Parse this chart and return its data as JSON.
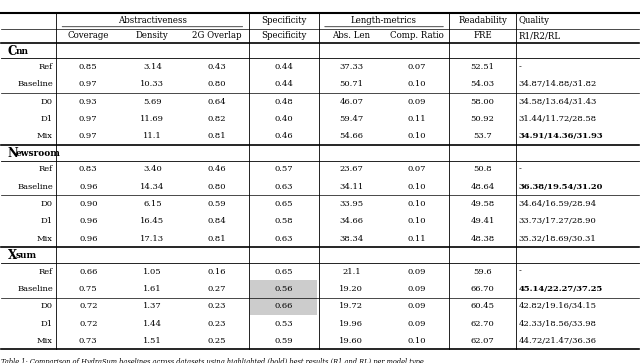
{
  "sections": [
    {
      "name": "CNN",
      "ref_rows": [
        {
          "label": "Ref",
          "values": [
            "0.85",
            "3.14",
            "0.43",
            "0.44",
            "37.33",
            "0.07",
            "52.51",
            "-"
          ],
          "bold_q": false
        },
        {
          "label": "Baseline",
          "values": [
            "0.97",
            "10.33",
            "0.80",
            "0.44",
            "50.71",
            "0.10",
            "54.03",
            "34.87/14.88/31.82"
          ],
          "bold_q": false
        }
      ],
      "dec_rows": [
        {
          "label": "D0",
          "values": [
            "0.93",
            "5.69",
            "0.64",
            "0.48",
            "46.07",
            "0.09",
            "58.00",
            "34.58/13.64/31.43"
          ],
          "bold_q": false,
          "hl": false
        },
        {
          "label": "D1",
          "values": [
            "0.97",
            "11.69",
            "0.82",
            "0.40",
            "59.47",
            "0.11",
            "50.92",
            "31.44/11.72/28.58"
          ],
          "bold_q": false,
          "hl": false
        },
        {
          "label": "Mix",
          "values": [
            "0.97",
            "11.1",
            "0.81",
            "0.46",
            "54.66",
            "0.10",
            "53.7",
            "34.91/14.36/31.93"
          ],
          "bold_q": true,
          "hl": false
        }
      ]
    },
    {
      "name": "Newsroom",
      "ref_rows": [
        {
          "label": "Ref",
          "values": [
            "0.83",
            "3.40",
            "0.46",
            "0.57",
            "23.67",
            "0.07",
            "50.8",
            "-"
          ],
          "bold_q": false
        },
        {
          "label": "Baseline",
          "values": [
            "0.96",
            "14.34",
            "0.80",
            "0.63",
            "34.11",
            "0.10",
            "48.64",
            "36.38/19.54/31.20"
          ],
          "bold_q": true
        }
      ],
      "dec_rows": [
        {
          "label": "D0",
          "values": [
            "0.90",
            "6.15",
            "0.59",
            "0.65",
            "33.95",
            "0.10",
            "49.58",
            "34.64/16.59/28.94"
          ],
          "bold_q": false,
          "hl": false
        },
        {
          "label": "D1",
          "values": [
            "0.96",
            "16.45",
            "0.84",
            "0.58",
            "34.66",
            "0.10",
            "49.41",
            "33.73/17.27/28.90"
          ],
          "bold_q": false,
          "hl": false
        },
        {
          "label": "Mix",
          "values": [
            "0.96",
            "17.13",
            "0.81",
            "0.63",
            "38.34",
            "0.11",
            "48.38",
            "35.32/18.69/30.31"
          ],
          "bold_q": false,
          "hl": false
        }
      ]
    },
    {
      "name": "Xsum",
      "ref_rows": [
        {
          "label": "Ref",
          "values": [
            "0.66",
            "1.05",
            "0.16",
            "0.65",
            "21.1",
            "0.09",
            "59.6",
            "-"
          ],
          "bold_q": false
        },
        {
          "label": "Baseline",
          "values": [
            "0.75",
            "1.61",
            "0.27",
            "0.56",
            "19.20",
            "0.09",
            "66.70",
            "45.14/22.27/37.25"
          ],
          "bold_q": true
        }
      ],
      "dec_rows": [
        {
          "label": "D0",
          "values": [
            "0.72",
            "1.37",
            "0.23",
            "0.66",
            "19.72",
            "0.09",
            "60.45",
            "42.82/19.16/34.15"
          ],
          "bold_q": false,
          "hl": true
        },
        {
          "label": "D1",
          "values": [
            "0.72",
            "1.44",
            "0.23",
            "0.53",
            "19.96",
            "0.09",
            "62.70",
            "42.33/18.56/33.98"
          ],
          "bold_q": false,
          "hl": true
        },
        {
          "label": "Mix",
          "values": [
            "0.73",
            "1.51",
            "0.25",
            "0.59",
            "19.60",
            "0.10",
            "62.07",
            "44.72/21.47/36.36"
          ],
          "bold_q": false,
          "hl": false
        }
      ]
    }
  ],
  "col_labels_r2": [
    "Coverage",
    "Density",
    "2G Overlap",
    "Specificity",
    "Abs. Len",
    "Comp. Ratio",
    "FRE",
    "R1/R2/RL"
  ],
  "footer": "Table 1: Comparison of HydraSum baselines across datasets using highlighted (bold) best results (R1 and RL) per model type.",
  "figure_width": 6.4,
  "figure_height": 3.63,
  "dpi": 100
}
